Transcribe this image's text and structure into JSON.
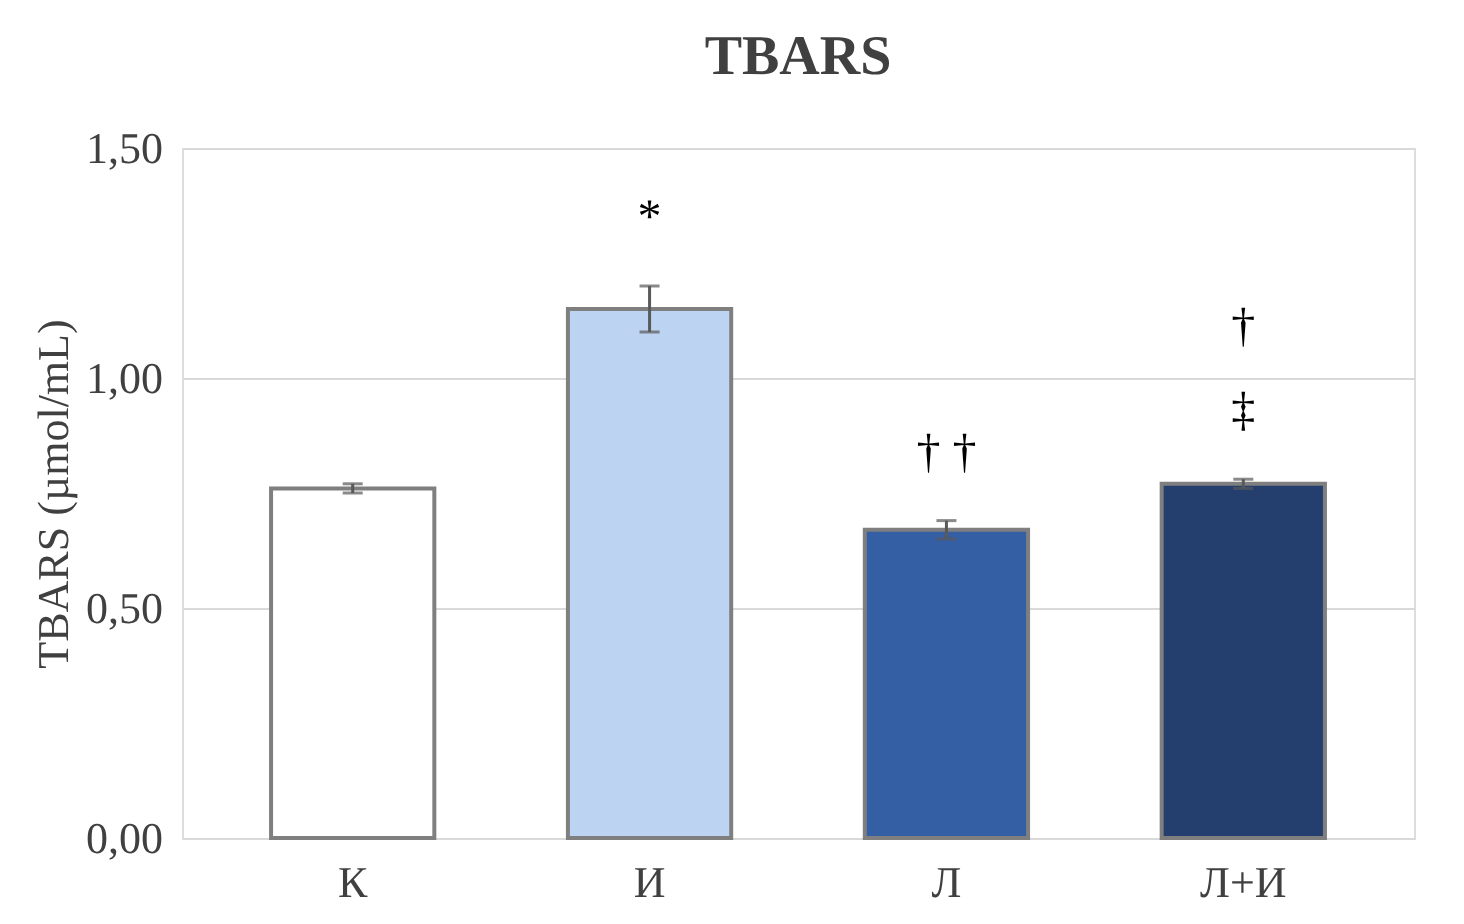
{
  "chart_data": {
    "type": "bar",
    "title": "TBARS",
    "ylabel": "TBARS (µmol/mL)",
    "categories": [
      "К",
      "И",
      "Л",
      "Л+И"
    ],
    "values": [
      0.76,
      1.15,
      0.67,
      0.77
    ],
    "colors": [
      "#ffffff",
      "#bdd3f2",
      "#355fa5",
      "#243f6e"
    ],
    "errors": [
      0.01,
      0.05,
      0.02,
      0.01
    ],
    "ylim": [
      0,
      1.5
    ],
    "yticks": [
      {
        "value": 0,
        "label": "0,00"
      },
      {
        "value": 0.5,
        "label": "0,50"
      },
      {
        "value": 1,
        "label": "1,00"
      },
      {
        "value": 1.5,
        "label": "1,50"
      }
    ],
    "grid": "y",
    "annotations": [
      "*",
      "† †",
      "‡",
      "†"
    ]
  }
}
